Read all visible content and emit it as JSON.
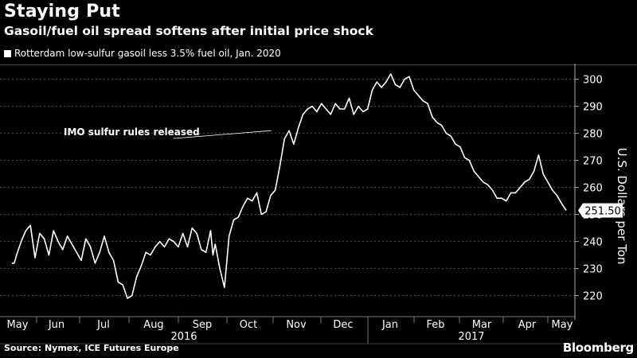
{
  "header": {
    "title": "Staying Put",
    "subtitle": "Gasoil/fuel oil spread softens after initial price shock"
  },
  "footer": {
    "source": "Source: Nymex, ICE Futures Europe",
    "brand": "Bloomberg"
  },
  "colors": {
    "background": "#000000",
    "line": "#ffffff",
    "grid": "#555555"
  },
  "chart_data": {
    "type": "line",
    "title": "Staying Put",
    "subtitle": "Gasoil/fuel oil spread softens after initial price shock",
    "ylabel": "U.S. Dollars per Ton",
    "xlabel": "",
    "ylim": [
      214,
      304
    ],
    "yticks": [
      220,
      230,
      240,
      250,
      260,
      270,
      280,
      290,
      300
    ],
    "x_tick_labels": [
      "May",
      "Jun",
      "Jul",
      "Aug",
      "Sep",
      "Oct",
      "Nov",
      "Dec",
      "Jan",
      "Feb",
      "Mar",
      "Apr",
      "May"
    ],
    "year_labels": [
      "2016",
      "2017"
    ],
    "grid": "horizontal dashed",
    "legend_position": "top-left",
    "series": [
      {
        "name": "Rotterdam low-sulfur gasoil less 3.5% fuel oil, Jan. 2020",
        "last_value_label": "251.50",
        "x_unit": "month index from May 2016",
        "x": [
          0.0,
          0.05,
          0.1,
          0.2,
          0.3,
          0.4,
          0.45,
          0.5,
          0.6,
          0.7,
          0.8,
          0.9,
          1.0,
          1.1,
          1.2,
          1.3,
          1.4,
          1.5,
          1.6,
          1.7,
          1.8,
          1.9,
          2.0,
          2.1,
          2.2,
          2.3,
          2.4,
          2.5,
          2.6,
          2.7,
          2.8,
          2.9,
          3.0,
          3.1,
          3.2,
          3.3,
          3.4,
          3.5,
          3.6,
          3.7,
          3.8,
          3.9,
          4.0,
          4.1,
          4.2,
          4.3,
          4.35,
          4.4,
          4.5,
          4.6,
          4.7,
          4.8,
          4.9,
          5.0,
          5.1,
          5.2,
          5.3,
          5.4,
          5.5,
          5.6,
          5.7,
          5.8,
          5.9,
          6.0,
          6.1,
          6.2,
          6.3,
          6.4,
          6.5,
          6.6,
          6.7,
          6.8,
          6.9,
          7.0,
          7.1,
          7.2,
          7.3,
          7.4,
          7.5,
          7.6,
          7.7,
          7.8,
          7.9,
          8.0,
          8.1,
          8.2,
          8.3,
          8.4,
          8.5,
          8.6,
          8.7,
          8.8,
          8.9,
          9.0,
          9.1,
          9.2,
          9.3,
          9.4,
          9.5,
          9.6,
          9.7,
          9.8,
          9.9,
          10.0,
          10.1,
          10.2,
          10.3,
          10.4,
          10.5,
          10.6,
          10.7,
          10.8,
          10.9,
          11.0,
          11.1,
          11.2,
          11.3,
          11.4,
          11.5,
          11.6,
          11.7,
          11.8,
          11.9,
          12.0
        ],
        "y": [
          232,
          232,
          235,
          240,
          244,
          246,
          240,
          234,
          243,
          241,
          235,
          244,
          240,
          237,
          242,
          239,
          236,
          233,
          241,
          238,
          232,
          236,
          242,
          236,
          233,
          225,
          224,
          219,
          220,
          227,
          231,
          236,
          235,
          238,
          240,
          238,
          241,
          240,
          238,
          243,
          238,
          245,
          243,
          237,
          236,
          244,
          235,
          239,
          230,
          223,
          242,
          248,
          249,
          253,
          256,
          255,
          258,
          250,
          251,
          257,
          259,
          268,
          278,
          281,
          276,
          282,
          287,
          289,
          290,
          288,
          291,
          289,
          287,
          291,
          289,
          289,
          293,
          287,
          290,
          288,
          289,
          296,
          299,
          297,
          299,
          302,
          298,
          297,
          300,
          301,
          296,
          294,
          292,
          291,
          286,
          284,
          283,
          280,
          279,
          276,
          275,
          271,
          270,
          266,
          264,
          262,
          261,
          259,
          256,
          256,
          255,
          258,
          258,
          260,
          262,
          263,
          266,
          272,
          265,
          262,
          259,
          257,
          254,
          251.5
        ]
      }
    ],
    "annotations": [
      {
        "text": "IMO sulfur rules released",
        "x": 5.65,
        "y": 281
      }
    ]
  }
}
